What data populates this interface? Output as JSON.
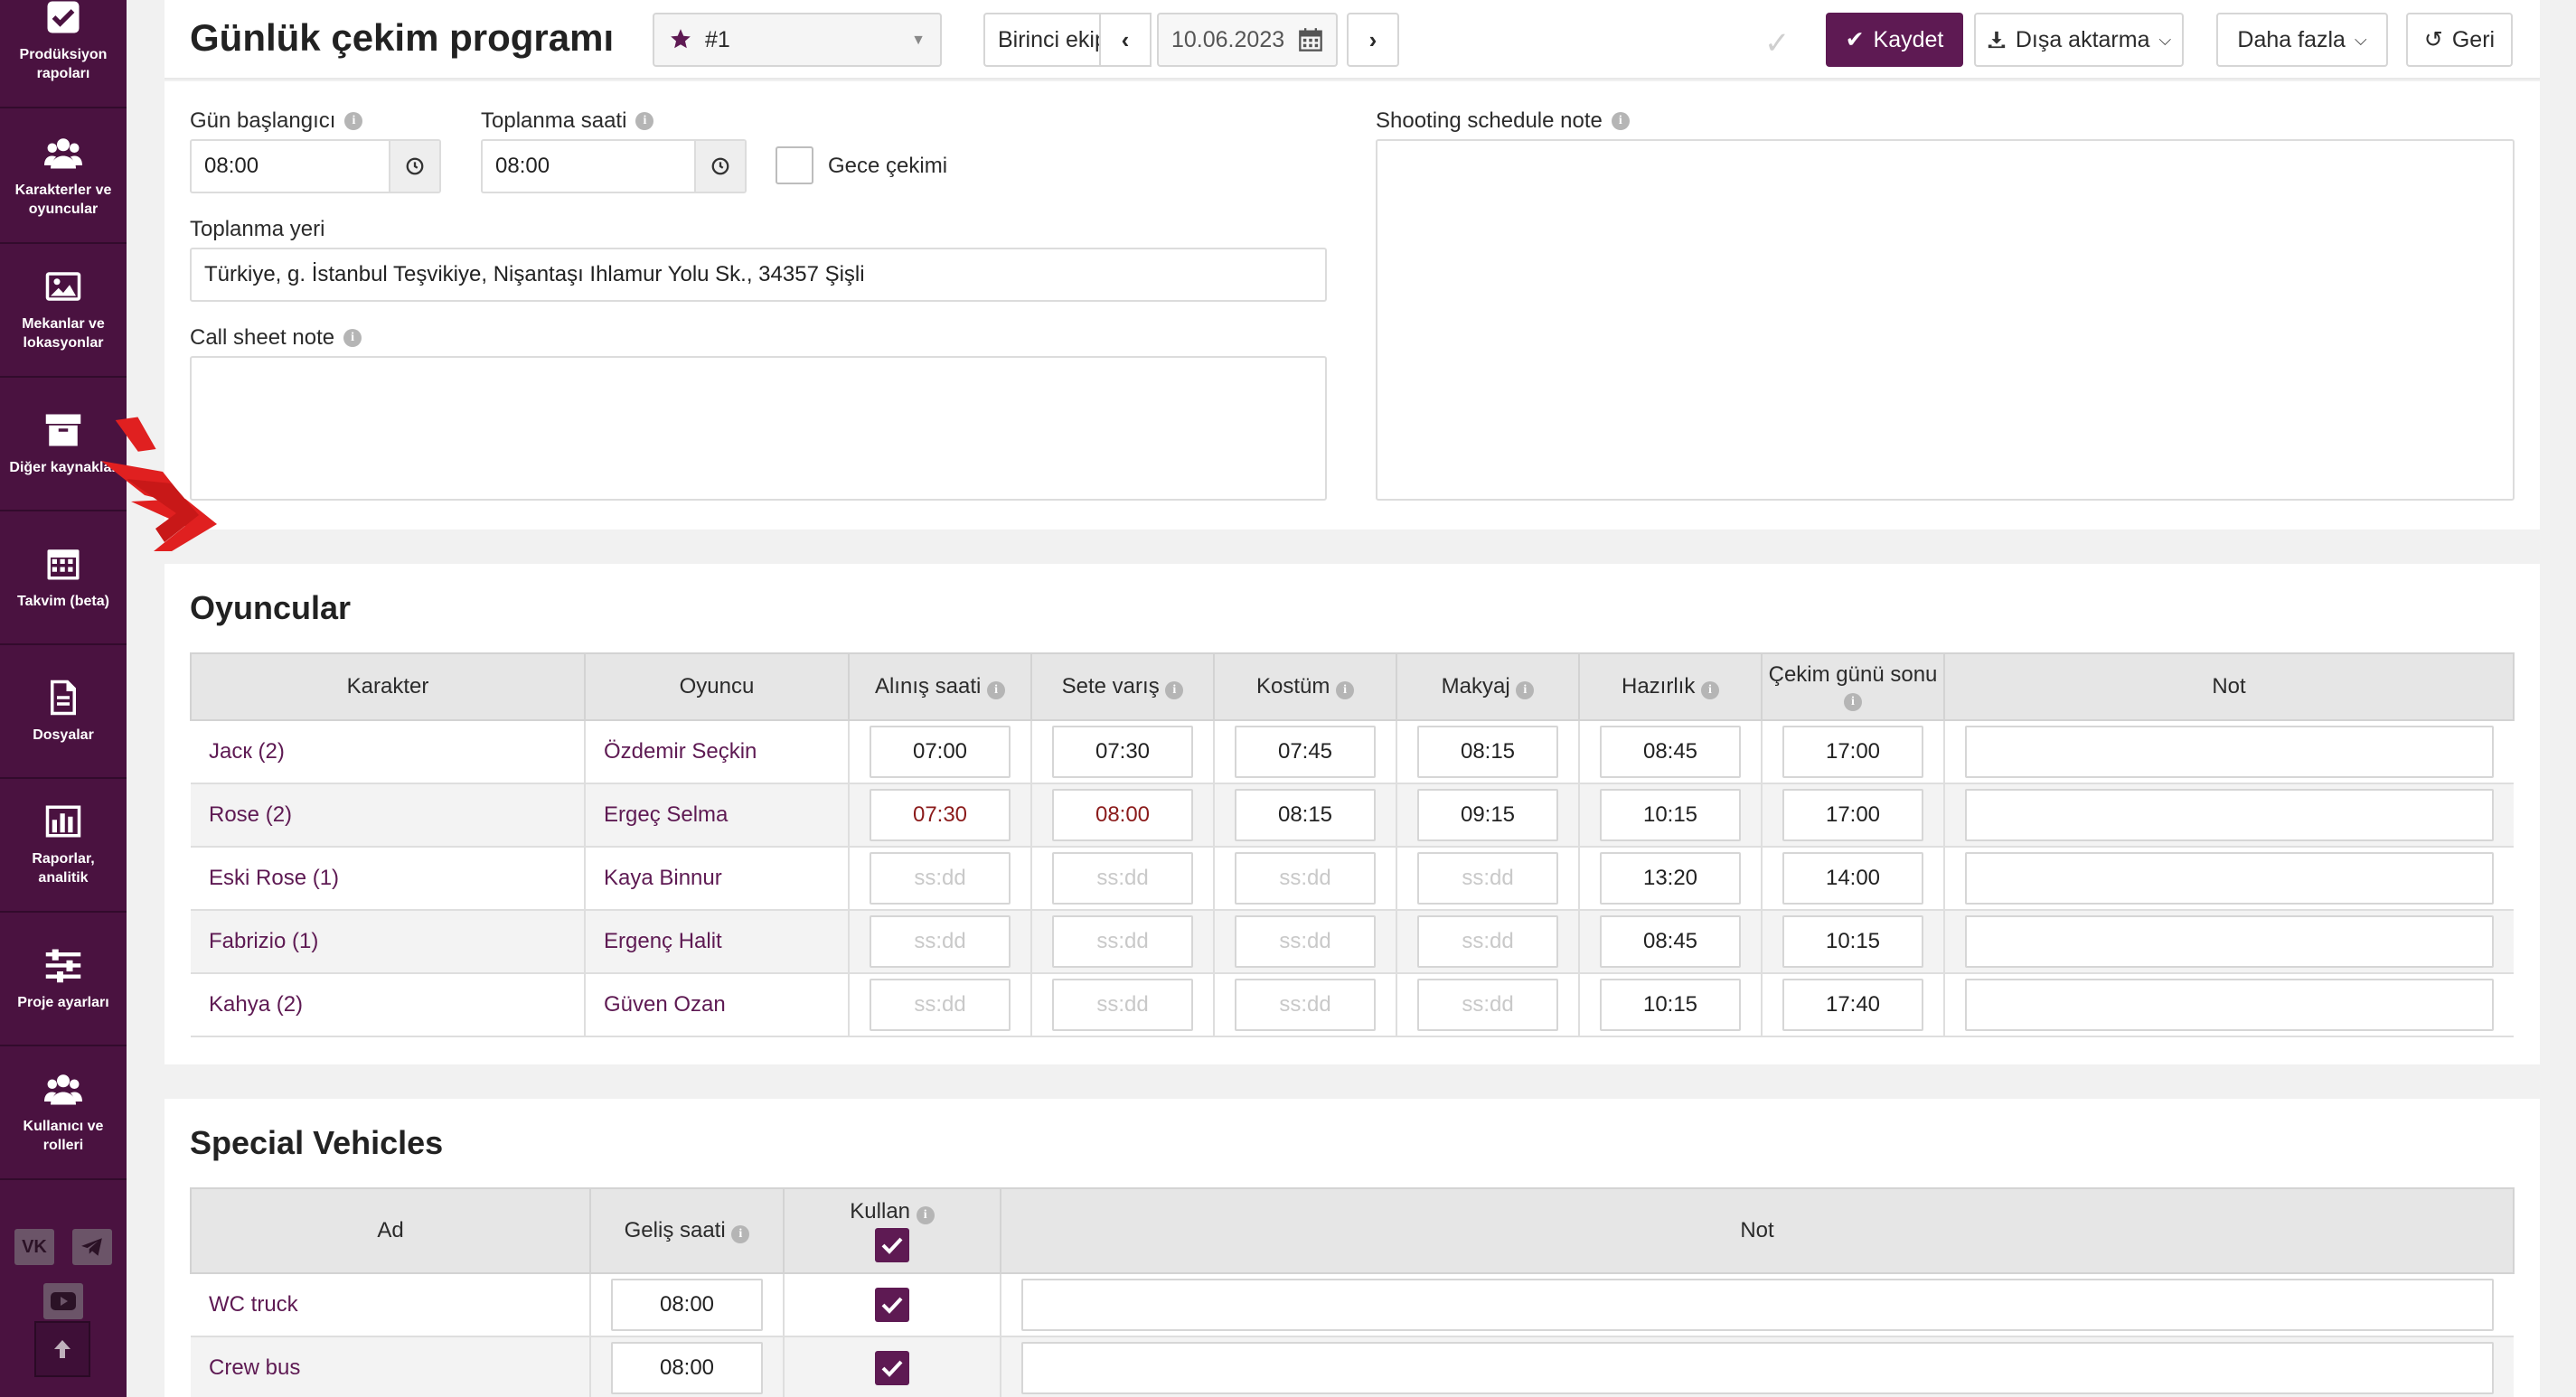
{
  "sidebar": {
    "items": [
      {
        "label": "Prodüksiyon rapoları",
        "icon": "check-square-icon"
      },
      {
        "label": "Karakterler ve oyuncular",
        "icon": "users-icon"
      },
      {
        "label": "Mekanlar ve lokasyonlar",
        "icon": "image-icon"
      },
      {
        "label": "Diğer kaynaklar",
        "icon": "archive-icon"
      },
      {
        "label": "Takvim (beta)",
        "icon": "calendar-icon"
      },
      {
        "label": "Dosyalar",
        "icon": "file-icon"
      },
      {
        "label": "Raporlar, analitik",
        "icon": "bar-chart-icon"
      },
      {
        "label": "Proje ayarları",
        "icon": "sliders-icon"
      },
      {
        "label": "Kullanıcı ve rolleri",
        "icon": "users-icon"
      }
    ],
    "social": [
      "vk-icon",
      "telegram-icon",
      "youtube-icon"
    ]
  },
  "header": {
    "title": "Günlük çekim programı",
    "call_sheet": "#1",
    "crew": "Birinci ekip",
    "date": "10.06.2023",
    "save_label": "Kaydet",
    "export_label": "Dışa aktarma",
    "more_label": "Daha fazla",
    "back_label": "Geri"
  },
  "form": {
    "day_start_label": "Gün başlangıcı",
    "day_start": "08:00",
    "gather_time_label": "Toplanma saati",
    "gather_time": "08:00",
    "night_shoot_label": "Gece çekimi",
    "gather_place_label": "Toplanma yeri",
    "gather_place": "Türkiye, g. İstanbul Teşvikiye, Nişantaşı Ihlamur Yolu Sk., 34357 Şişli",
    "call_sheet_note_label": "Call sheet note",
    "shooting_note_label": "Shooting schedule note"
  },
  "actors": {
    "title": "Oyuncular",
    "columns": [
      "Karakter",
      "Oyuncu",
      "Alınış saati",
      "Sete varış",
      "Kostüm",
      "Makyaj",
      "Hazırlık",
      "Çekim günü sonu",
      "Not"
    ],
    "placeholder": "ss:dd",
    "rows": [
      {
        "character": "Jacк (2)",
        "actor": "Özdemir Seçkin",
        "pickup": "07:00",
        "arrival": "07:30",
        "costume": "07:45",
        "makeup": "08:15",
        "ready": "08:45",
        "wrap": "17:00"
      },
      {
        "character": "Rose (2)",
        "actor": "Ergeç Selma",
        "pickup": "07:30",
        "arrival": "08:00",
        "costume": "08:15",
        "makeup": "09:15",
        "ready": "10:15",
        "wrap": "17:00"
      },
      {
        "character": "Eski Rose (1)",
        "actor": "Kaya Binnur",
        "pickup": "",
        "arrival": "",
        "costume": "",
        "makeup": "",
        "ready": "13:20",
        "wrap": "14:00"
      },
      {
        "character": "Fabrizio (1)",
        "actor": "Ergenç Halit",
        "pickup": "",
        "arrival": "",
        "costume": "",
        "makeup": "",
        "ready": "08:45",
        "wrap": "10:15"
      },
      {
        "character": "Kahya (2)",
        "actor": "Güven Ozan",
        "pickup": "",
        "arrival": "",
        "costume": "",
        "makeup": "",
        "ready": "10:15",
        "wrap": "17:40"
      }
    ]
  },
  "vehicles": {
    "title": "Special Vehicles",
    "columns": [
      "Ad",
      "Geliş saati",
      "Kullan",
      "Not"
    ],
    "rows": [
      {
        "name": "WC truck",
        "arrival": "08:00",
        "use": true
      },
      {
        "name": "Crew bus",
        "arrival": "08:00",
        "use": true
      }
    ]
  },
  "colors": {
    "brand": "#5e1a53",
    "sidebar": "#4a1240",
    "late_time": "#8b1b1b",
    "arrow": "#e02020"
  }
}
